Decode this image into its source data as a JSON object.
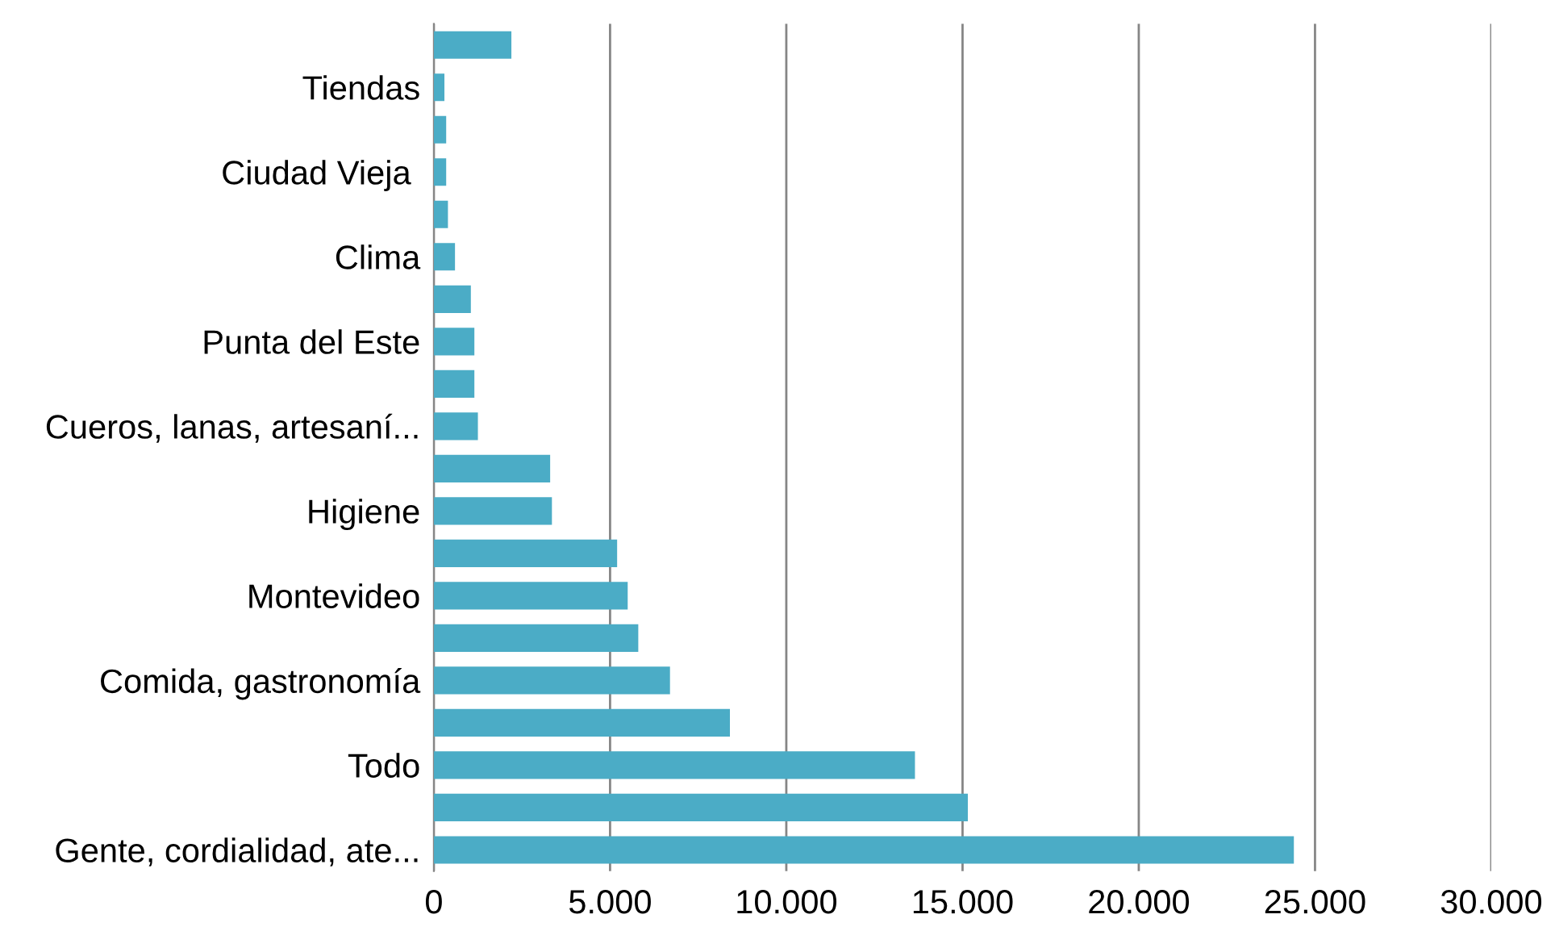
{
  "chart_data": {
    "type": "bar",
    "orientation": "horizontal",
    "categories": [
      null,
      "Tiendas",
      null,
      "Ciudad Vieja ",
      null,
      "Clima",
      null,
      "Punta del Este",
      null,
      "Cueros, lanas, artesaní...",
      null,
      "Higiene",
      null,
      "Montevideo",
      null,
      "Comida, gastronomía",
      null,
      "Todo",
      null,
      "Gente, cordialidad, ate..."
    ],
    "values": [
      2200,
      300,
      350,
      350,
      400,
      600,
      1050,
      1150,
      1150,
      1250,
      3300,
      3350,
      5200,
      5500,
      5800,
      6700,
      8400,
      13650,
      15150,
      24400
    ],
    "color": "#4bacc6",
    "xlim": [
      0,
      30000
    ],
    "xticks": [
      {
        "value": 0,
        "label": "0"
      },
      {
        "value": 5000,
        "label": "5.000"
      },
      {
        "value": 10000,
        "label": "10.000"
      },
      {
        "value": 15000,
        "label": "15.000"
      },
      {
        "value": 20000,
        "label": "20.000"
      },
      {
        "value": 25000,
        "label": "25.000"
      },
      {
        "value": 30000,
        "label": "30.000"
      }
    ],
    "grid": "x",
    "legend": false
  }
}
